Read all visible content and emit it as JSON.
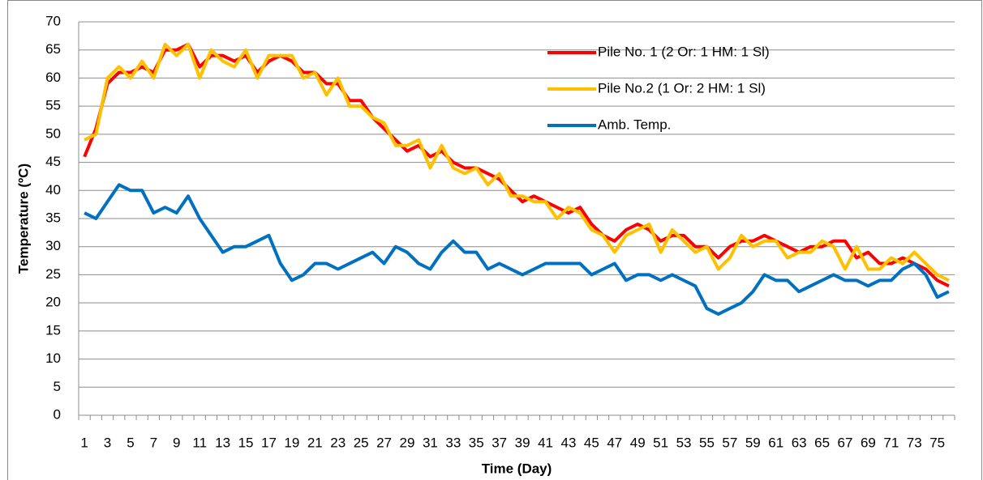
{
  "chart_data": {
    "type": "line",
    "x_label": "Time (Day)",
    "y_label": "Temperature (ºC)",
    "categories": [
      "1",
      null,
      "3",
      null,
      "5",
      null,
      "7",
      null,
      "9",
      null,
      "11",
      null,
      "13",
      null,
      "15",
      null,
      "17",
      null,
      "19",
      null,
      "21",
      null,
      "23",
      null,
      "25",
      null,
      "27",
      null,
      "29",
      null,
      "31",
      null,
      "33",
      null,
      "35",
      null,
      "37",
      null,
      "39",
      null,
      "41",
      null,
      "43",
      null,
      "45",
      null,
      "47",
      null,
      "49",
      null,
      "51",
      null,
      "53",
      null,
      "55",
      null,
      "57",
      null,
      "59",
      null,
      "61",
      null,
      "63",
      null,
      "65",
      null,
      "67",
      null,
      "69",
      null,
      "71",
      null,
      "73",
      null,
      "75",
      null
    ],
    "series": [
      {
        "name": "Pile No. 1 (2 Or: 1 HM: 1 Sl)",
        "color": "#ff0000",
        "values": [
          46,
          51,
          59,
          61,
          61,
          62,
          61,
          65,
          65,
          66,
          62,
          64,
          64,
          63,
          64,
          61,
          63,
          64,
          63,
          61,
          61,
          59,
          59,
          56,
          56,
          53,
          51,
          49,
          47,
          48,
          46,
          47,
          45,
          44,
          44,
          43,
          42,
          40,
          38,
          39,
          38,
          37,
          36,
          37,
          34,
          32,
          31,
          33,
          34,
          33,
          31,
          32,
          32,
          30,
          30,
          28,
          30,
          31,
          31,
          32,
          31,
          30,
          29,
          30,
          30,
          31,
          31,
          28,
          29,
          27,
          27,
          28,
          27,
          26,
          24,
          23
        ]
      },
      {
        "name": "Pile No.2  (1 Or: 2 HM: 1 Sl)",
        "color": "#ffc000",
        "values": [
          49,
          50,
          60,
          62,
          60,
          63,
          60,
          66,
          64,
          66,
          60,
          65,
          63,
          62,
          65,
          60,
          64,
          64,
          64,
          60,
          61,
          57,
          60,
          55,
          55,
          53,
          52,
          48,
          48,
          49,
          44,
          48,
          44,
          43,
          44,
          41,
          43,
          39,
          39,
          38,
          38,
          35,
          37,
          36,
          33,
          32,
          29,
          32,
          33,
          34,
          29,
          33,
          31,
          29,
          30,
          26,
          28,
          32,
          30,
          31,
          31,
          28,
          29,
          29,
          31,
          30,
          26,
          30,
          26,
          26,
          28,
          27,
          29,
          27,
          25,
          24
        ]
      },
      {
        "name": "Amb. Temp.",
        "color": "#0070c0",
        "values": [
          36,
          35,
          38,
          41,
          40,
          40,
          36,
          37,
          36,
          39,
          35,
          32,
          29,
          30,
          30,
          31,
          32,
          27,
          24,
          25,
          27,
          27,
          26,
          27,
          28,
          29,
          27,
          30,
          29,
          27,
          26,
          29,
          31,
          29,
          29,
          26,
          27,
          26,
          25,
          26,
          27,
          27,
          27,
          27,
          25,
          26,
          27,
          24,
          25,
          25,
          24,
          25,
          24,
          23,
          19,
          18,
          19,
          20,
          22,
          25,
          24,
          24,
          22,
          23,
          24,
          25,
          24,
          24,
          23,
          24,
          24,
          26,
          27,
          25,
          21,
          22
        ]
      }
    ],
    "ylim": [
      0,
      70
    ],
    "yticks": [
      0,
      5,
      10,
      15,
      20,
      25,
      30,
      35,
      40,
      45,
      50,
      55,
      60,
      65,
      70
    ],
    "grid": true,
    "legend": "upper right"
  }
}
